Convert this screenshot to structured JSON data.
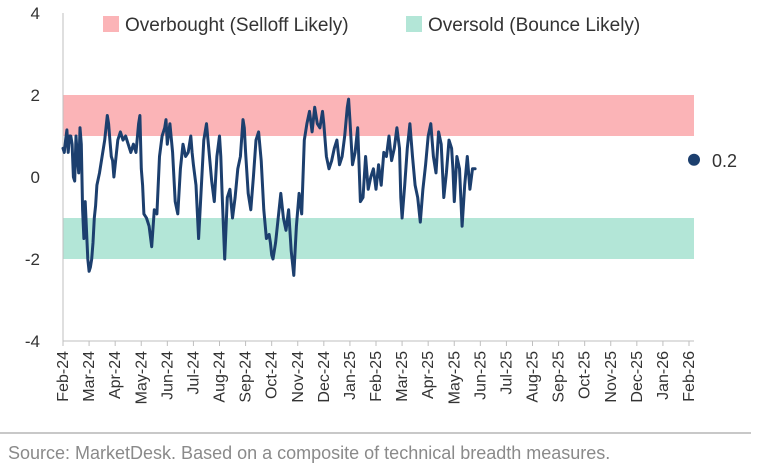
{
  "chart_data": {
    "type": "line",
    "ylim": [
      -4,
      4
    ],
    "yticks": [
      4,
      2,
      0,
      -2,
      -4
    ],
    "x_categories": [
      "Feb-24",
      "Mar-24",
      "Apr-24",
      "May-24",
      "Jun-24",
      "Jul-24",
      "Aug-24",
      "Sep-24",
      "Oct-24",
      "Nov-24",
      "Dec-24",
      "Jan-25",
      "Feb-25",
      "Mar-25",
      "Apr-25",
      "May-25",
      "Jun-25",
      "Jul-25",
      "Aug-25",
      "Sep-25",
      "Oct-25",
      "Nov-25",
      "Dec-25",
      "Jan-26",
      "Feb-26"
    ],
    "bands": [
      {
        "label": "Overbought (Selloff Likely)",
        "from": 1,
        "to": 2,
        "color": "#fbb4b7"
      },
      {
        "label": "Oversold (Bounce Likely)",
        "from": -2,
        "to": -1,
        "color": "#b3e6d7"
      }
    ],
    "series": [
      {
        "color": "#1c3f6e",
        "points": [
          [
            0.0,
            0.7
          ],
          [
            0.05,
            0.6
          ],
          [
            0.1,
            0.9
          ],
          [
            0.15,
            1.15
          ],
          [
            0.2,
            0.6
          ],
          [
            0.25,
            1.0
          ],
          [
            0.3,
            1.0
          ],
          [
            0.35,
            0.8
          ],
          [
            0.4,
            0.0
          ],
          [
            0.45,
            -0.1
          ],
          [
            0.5,
            1.0
          ],
          [
            0.55,
            0.5
          ],
          [
            0.6,
            0.1
          ],
          [
            0.65,
            1.2
          ],
          [
            0.7,
            0.8
          ],
          [
            0.75,
            -0.8
          ],
          [
            0.8,
            -1.5
          ],
          [
            0.85,
            -0.6
          ],
          [
            0.9,
            -1.3
          ],
          [
            0.95,
            -2.0
          ],
          [
            1.0,
            -2.3
          ],
          [
            1.05,
            -2.2
          ],
          [
            1.1,
            -2.0
          ],
          [
            1.15,
            -1.6
          ],
          [
            1.2,
            -1.0
          ],
          [
            1.25,
            -0.7
          ],
          [
            1.3,
            -0.2
          ],
          [
            1.4,
            0.1
          ],
          [
            1.5,
            0.5
          ],
          [
            1.6,
            0.9
          ],
          [
            1.7,
            1.5
          ],
          [
            1.75,
            1.3
          ],
          [
            1.8,
            0.9
          ],
          [
            1.85,
            0.5
          ],
          [
            1.9,
            0.4
          ],
          [
            1.95,
            0.0
          ],
          [
            2.05,
            0.6
          ],
          [
            2.1,
            0.9
          ],
          [
            2.2,
            1.1
          ],
          [
            2.3,
            0.9
          ],
          [
            2.4,
            1.0
          ],
          [
            2.5,
            0.8
          ],
          [
            2.6,
            0.6
          ],
          [
            2.7,
            0.8
          ],
          [
            2.8,
            0.6
          ],
          [
            2.9,
            1.3
          ],
          [
            2.95,
            1.5
          ],
          [
            3.0,
            0.2
          ],
          [
            3.05,
            -0.2
          ],
          [
            3.1,
            -0.9
          ],
          [
            3.2,
            -1.0
          ],
          [
            3.3,
            -1.2
          ],
          [
            3.4,
            -1.7
          ],
          [
            3.5,
            -0.8
          ],
          [
            3.6,
            -0.9
          ],
          [
            3.7,
            0.5
          ],
          [
            3.8,
            1.0
          ],
          [
            3.9,
            1.2
          ],
          [
            3.95,
            1.4
          ],
          [
            4.0,
            0.8
          ],
          [
            4.1,
            1.3
          ],
          [
            4.2,
            0.6
          ],
          [
            4.3,
            -0.6
          ],
          [
            4.4,
            -0.9
          ],
          [
            4.5,
            0.2
          ],
          [
            4.6,
            0.8
          ],
          [
            4.7,
            0.5
          ],
          [
            4.8,
            0.6
          ],
          [
            4.9,
            1.0
          ],
          [
            4.95,
            0.6
          ],
          [
            5.0,
            0.3
          ],
          [
            5.1,
            -0.2
          ],
          [
            5.2,
            -1.5
          ],
          [
            5.3,
            -0.3
          ],
          [
            5.4,
            0.9
          ],
          [
            5.5,
            1.3
          ],
          [
            5.6,
            0.6
          ],
          [
            5.7,
            -0.1
          ],
          [
            5.8,
            -0.6
          ],
          [
            5.9,
            0.5
          ],
          [
            6.0,
            1.0
          ],
          [
            6.05,
            0.5
          ],
          [
            6.1,
            -0.4
          ],
          [
            6.2,
            -2.0
          ],
          [
            6.3,
            -0.5
          ],
          [
            6.4,
            -0.3
          ],
          [
            6.5,
            -1.0
          ],
          [
            6.6,
            -0.5
          ],
          [
            6.7,
            0.2
          ],
          [
            6.8,
            0.5
          ],
          [
            6.9,
            1.4
          ],
          [
            6.95,
            1.2
          ],
          [
            7.0,
            0.6
          ],
          [
            7.1,
            -0.4
          ],
          [
            7.2,
            -0.8
          ],
          [
            7.3,
            0.0
          ],
          [
            7.4,
            0.9
          ],
          [
            7.5,
            1.1
          ],
          [
            7.6,
            0.4
          ],
          [
            7.7,
            -0.8
          ],
          [
            7.8,
            -1.5
          ],
          [
            7.9,
            -1.4
          ],
          [
            7.95,
            -1.6
          ],
          [
            8.0,
            -1.9
          ],
          [
            8.05,
            -2.0
          ],
          [
            8.15,
            -1.6
          ],
          [
            8.25,
            -1.0
          ],
          [
            8.35,
            -0.4
          ],
          [
            8.45,
            -1.0
          ],
          [
            8.55,
            -1.3
          ],
          [
            8.65,
            -0.8
          ],
          [
            8.75,
            -1.8
          ],
          [
            8.85,
            -2.4
          ],
          [
            8.95,
            -1.2
          ],
          [
            9.05,
            -0.4
          ],
          [
            9.15,
            -0.9
          ],
          [
            9.25,
            0.9
          ],
          [
            9.35,
            1.3
          ],
          [
            9.45,
            1.6
          ],
          [
            9.55,
            1.1
          ],
          [
            9.65,
            1.7
          ],
          [
            9.75,
            1.3
          ],
          [
            9.85,
            1.2
          ],
          [
            9.95,
            1.6
          ],
          [
            10.0,
            1.3
          ],
          [
            10.1,
            0.5
          ],
          [
            10.2,
            0.2
          ],
          [
            10.3,
            0.4
          ],
          [
            10.4,
            0.7
          ],
          [
            10.5,
            0.9
          ],
          [
            10.6,
            0.3
          ],
          [
            10.7,
            0.5
          ],
          [
            10.8,
            1.0
          ],
          [
            10.9,
            1.7
          ],
          [
            10.95,
            1.9
          ],
          [
            11.0,
            1.4
          ],
          [
            11.1,
            0.3
          ],
          [
            11.2,
            0.6
          ],
          [
            11.3,
            1.2
          ],
          [
            11.4,
            -0.6
          ],
          [
            11.5,
            -0.5
          ],
          [
            11.6,
            0.5
          ],
          [
            11.7,
            -0.3
          ],
          [
            11.8,
            0.0
          ],
          [
            11.9,
            0.2
          ],
          [
            12.0,
            -0.3
          ],
          [
            12.1,
            0.3
          ],
          [
            12.2,
            -0.2
          ],
          [
            12.3,
            0.6
          ],
          [
            12.4,
            0.5
          ],
          [
            12.5,
            1.0
          ],
          [
            12.6,
            0.4
          ],
          [
            12.7,
            0.7
          ],
          [
            12.8,
            1.2
          ],
          [
            12.9,
            0.7
          ],
          [
            12.95,
            -0.5
          ],
          [
            13.0,
            -1.0
          ],
          [
            13.1,
            -0.2
          ],
          [
            13.2,
            0.7
          ],
          [
            13.3,
            1.3
          ],
          [
            13.4,
            0.5
          ],
          [
            13.5,
            -0.2
          ],
          [
            13.6,
            -0.5
          ],
          [
            13.7,
            -1.1
          ],
          [
            13.8,
            -0.3
          ],
          [
            13.9,
            0.3
          ],
          [
            14.0,
            1.0
          ],
          [
            14.1,
            1.3
          ],
          [
            14.2,
            0.5
          ],
          [
            14.3,
            0.1
          ],
          [
            14.4,
            1.1
          ],
          [
            14.5,
            0.8
          ],
          [
            14.6,
            -0.5
          ],
          [
            14.7,
            0.1
          ],
          [
            14.8,
            0.9
          ],
          [
            14.9,
            0.7
          ],
          [
            14.95,
            0.2
          ],
          [
            15.0,
            -0.6
          ],
          [
            15.1,
            0.5
          ],
          [
            15.2,
            0.2
          ],
          [
            15.3,
            -1.2
          ],
          [
            15.4,
            -0.2
          ],
          [
            15.5,
            0.5
          ],
          [
            15.6,
            -0.3
          ],
          [
            15.7,
            0.2
          ],
          [
            15.8,
            0.2
          ]
        ]
      }
    ],
    "end_label": "0.2"
  },
  "source": "Source: MarketDesk. Based on a composite of technical breadth measures."
}
